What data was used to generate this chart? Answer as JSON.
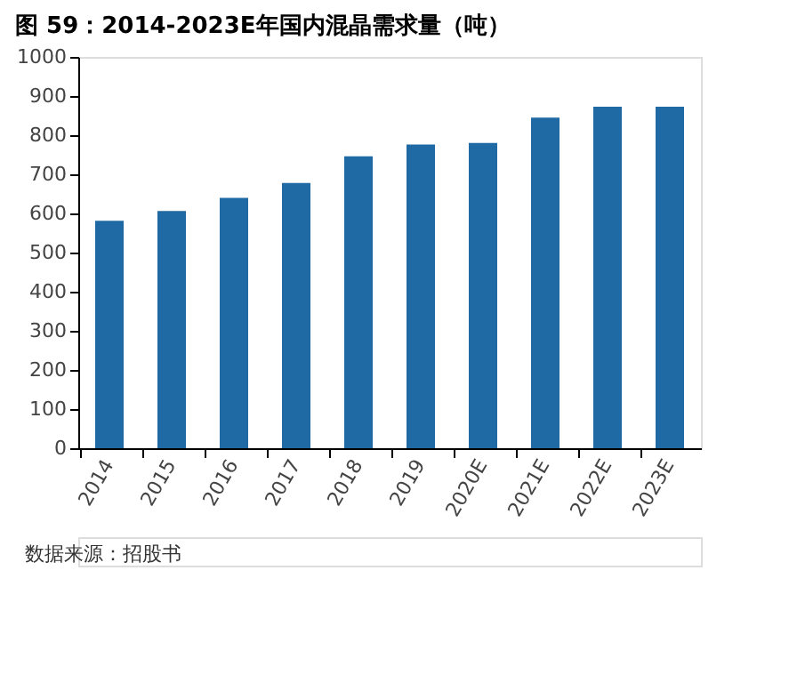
{
  "chart_data": {
    "type": "bar",
    "title": "图 59：2014-2023E年国内混晶需求量（吨）",
    "categories": [
      "2014",
      "2015",
      "2016",
      "2017",
      "2018",
      "2019",
      "2020E",
      "2021E",
      "2022E",
      "2023E"
    ],
    "values": [
      581,
      606,
      640,
      678,
      746,
      776,
      780,
      845,
      873,
      873
    ],
    "color": "#1f6aa5",
    "ylim": [
      0,
      1000
    ],
    "yticks": [
      0,
      100,
      200,
      300,
      400,
      500,
      600,
      700,
      800,
      900,
      1000
    ],
    "grid": false,
    "annotations": [
      "数据来源：招股书"
    ]
  }
}
